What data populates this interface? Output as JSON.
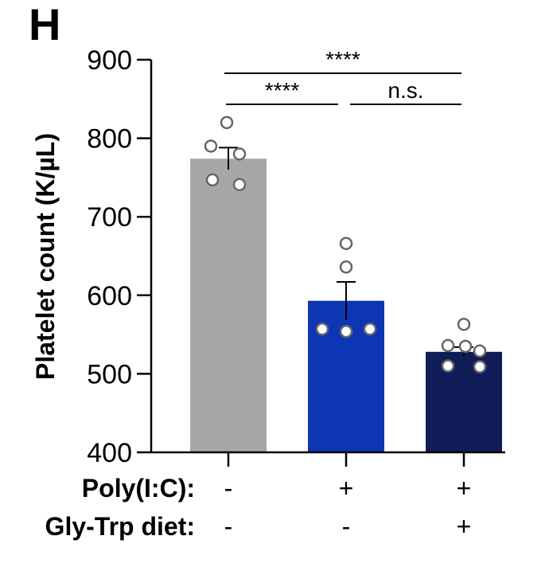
{
  "panel_label": "H",
  "chart_data": {
    "type": "bar",
    "ylabel": "Platelet count (K/µL)",
    "ylim": [
      400,
      900
    ],
    "yticks": [
      400,
      500,
      600,
      700,
      800,
      900
    ],
    "bars": [
      {
        "value": 774,
        "error": 14,
        "color": "#a7a8a6",
        "points": [
          820,
          790,
          780,
          747,
          741
        ]
      },
      {
        "value": 593,
        "error": 24,
        "color": "#0d36b4",
        "points": [
          666,
          636,
          557,
          554,
          557
        ]
      },
      {
        "value": 528,
        "error": 6,
        "color": "#111d58",
        "points": [
          563,
          536,
          535,
          529,
          510,
          509
        ]
      }
    ],
    "significance": [
      {
        "from": 0,
        "to": 2,
        "label": "****"
      },
      {
        "from": 0,
        "to": 1,
        "label": "****"
      },
      {
        "from": 1,
        "to": 2,
        "label": "n.s."
      }
    ],
    "treatment_rows": [
      {
        "label": "Poly(I:C):",
        "values": [
          "-",
          "+",
          "+"
        ]
      },
      {
        "label": "Gly-Trp diet:",
        "values": [
          "-",
          "-",
          "+"
        ]
      }
    ]
  }
}
